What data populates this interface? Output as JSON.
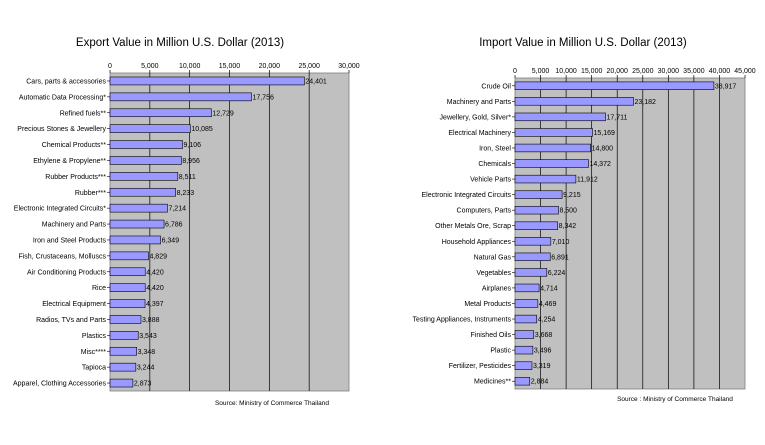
{
  "chart_data": [
    {
      "type": "bar",
      "orientation": "horizontal",
      "title": "Export Value in Million U.S. Dollar (2013)",
      "xlim": [
        0,
        30000
      ],
      "ticks": [
        0,
        5000,
        10000,
        15000,
        20000,
        25000,
        30000
      ],
      "tick_labels": [
        "0",
        "5,000",
        "10,000",
        "15,000",
        "20,000",
        "25,000",
        "30,000"
      ],
      "grid": true,
      "bar_color": "#9999ff",
      "plot_bg": "#c0c0c0",
      "categories": [
        "Cars, parts & accessories",
        "Automatic Data Processing*",
        "Refined fuels**",
        "Precious Stones & Jewellery",
        "Chemical Products**",
        "Ethylene & Propylene**",
        "Rubber Products***",
        "Rubber***",
        "Electronic Integrated Circuits*",
        "Machinery and Parts",
        "Iron and Steel Products",
        "Fish, Crustaceans, Molluscs",
        "Air Conditioning Products",
        "Rice",
        "Electrical Equipment",
        "Radios, TVs and Parts",
        "Plastics",
        "Misc****",
        "Tapioca",
        "Apparel, Clothing Accessories"
      ],
      "values": [
        24401,
        17756,
        12729,
        10085,
        9106,
        8956,
        8511,
        8233,
        7214,
        6786,
        6349,
        4829,
        4420,
        4420,
        4397,
        3888,
        3543,
        3348,
        3244,
        2873
      ],
      "value_labels": [
        "24,401",
        "17,756",
        "12,729",
        "10,085",
        "9,106",
        "8,956",
        "8,511",
        "8,233",
        "7,214",
        "6,786",
        "6,349",
        "4,829",
        "4,420",
        "4,420",
        "4,397",
        "3,888",
        "3,543",
        "3,348",
        "3,244",
        "2,873"
      ],
      "source": "Source: Ministry of Commerce Thailand"
    },
    {
      "type": "bar",
      "orientation": "horizontal",
      "title": "Import Value in Million U.S. Dollar (2013)",
      "xlim": [
        0,
        45000
      ],
      "ticks": [
        0,
        5000,
        10000,
        15000,
        20000,
        25000,
        30000,
        35000,
        40000,
        45000
      ],
      "tick_labels": [
        "0",
        "5,000",
        "10,000",
        "15,000",
        "20,000",
        "25,000",
        "30,000",
        "35,000",
        "40,000",
        "45,000"
      ],
      "grid": true,
      "bar_color": "#9999ff",
      "plot_bg": "#c0c0c0",
      "categories": [
        "Crude Oil",
        "Machinery and Parts",
        "Jewellery, Gold, Silver*",
        "Electrical Machinery",
        "Iron, Steel",
        "Chemicals",
        "Vehicle Parts",
        "Electronic Integrated Circuits",
        "Computers, Parts",
        "Other Metals Ore, Scrap",
        "Household Appliances",
        "Natural Gas",
        "Vegetables",
        "Airplanes",
        "Metal Products",
        "Testing Appliances, Instruments",
        "Finished Oils",
        "Plastic",
        "Fertilizer, Pesticides",
        "Medicines**"
      ],
      "values": [
        38917,
        23182,
        17711,
        15169,
        14800,
        14372,
        11912,
        9215,
        8500,
        8342,
        7010,
        6891,
        6224,
        4714,
        4469,
        4254,
        3668,
        3496,
        3319,
        2884
      ],
      "value_labels": [
        "38,917",
        "23,182",
        "17,711",
        "15,169",
        "14,800",
        "14,372",
        "11,912",
        "9,215",
        "8,500",
        "8,342",
        "7,010",
        "6,891",
        "6,224",
        "4,714",
        "4,469",
        "4,254",
        "3,668",
        "3,496",
        "3,319",
        "2,884"
      ],
      "source": "Source : Ministry of Commerce Thailand"
    }
  ]
}
